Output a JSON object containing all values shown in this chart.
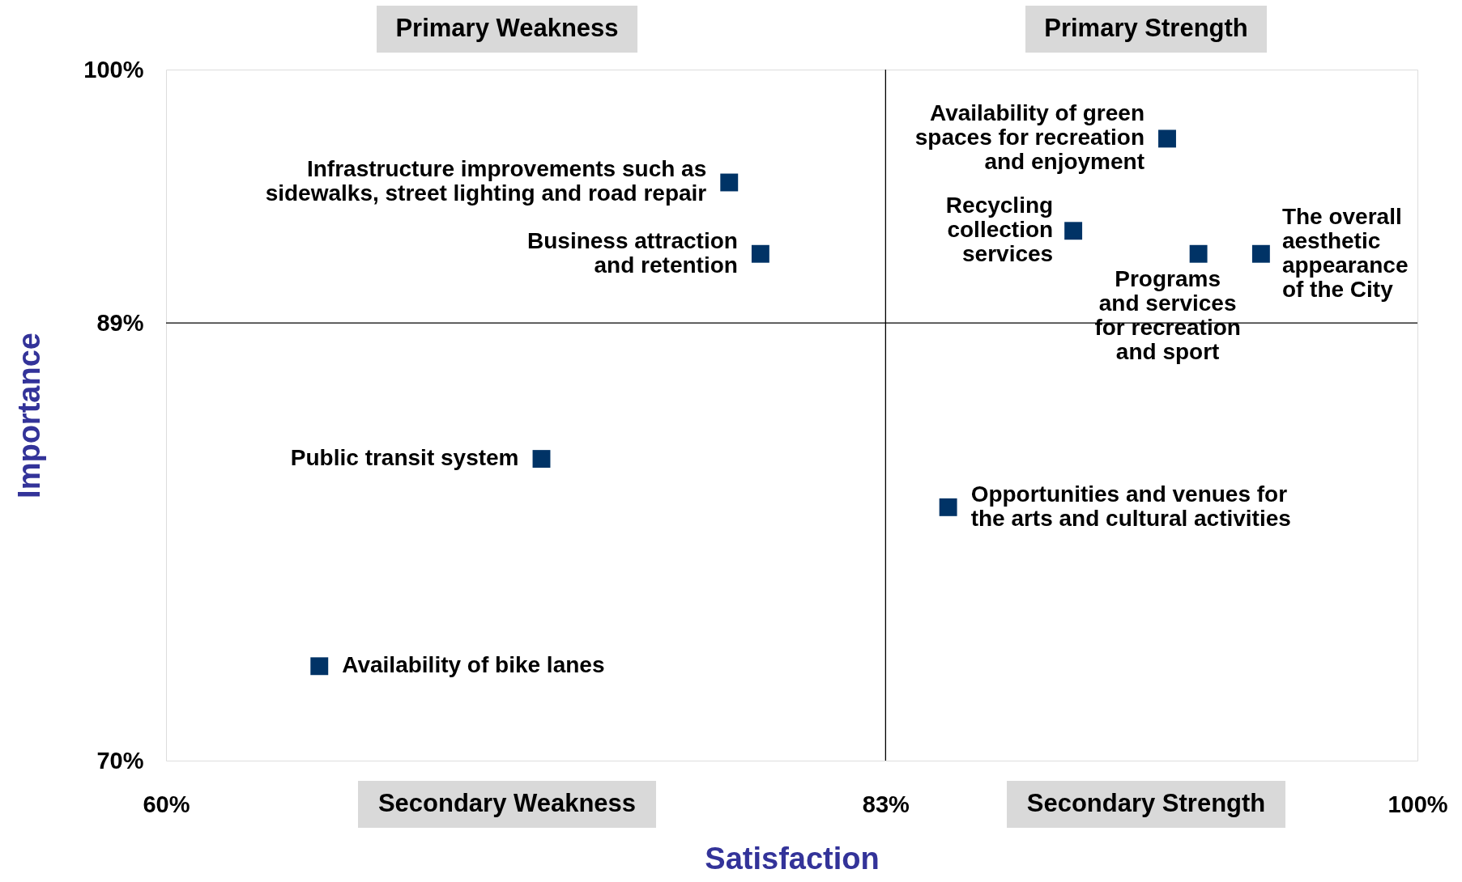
{
  "chart_data": {
    "type": "scatter",
    "xlabel": "Satisfaction",
    "ylabel": "Importance",
    "x": [
      78.0,
      79.0,
      72.0,
      64.9,
      92.0,
      89.0,
      93.0,
      95.0,
      85.0
    ],
    "series": [
      {
        "color": "#003366",
        "values": [
          95.1,
          92.0,
          83.1,
          74.1,
          97.0,
          93.0,
          92.0,
          92.0,
          81.0
        ]
      }
    ],
    "marker": "square",
    "grid": false,
    "xlim": [
      60,
      100
    ],
    "ylim": [
      70,
      100
    ],
    "xticks": [
      {
        "value": 60,
        "label": "60%"
      },
      {
        "value": 83,
        "label": "83%"
      },
      {
        "value": 100,
        "label": "100%"
      }
    ],
    "yticks": [
      {
        "value": 70,
        "label": "70%"
      },
      {
        "value": 89,
        "label": "89%"
      },
      {
        "value": 100,
        "label": "100%"
      }
    ],
    "ref_lines": [
      {
        "axis": "x",
        "value": 83,
        "color": "#000000"
      },
      {
        "axis": "y",
        "value": 89,
        "color": "#000000"
      }
    ],
    "annotations": [
      {
        "text": "Infrastructure improvements such as\nsidewalks, street lighting and road repair",
        "x": 78.0,
        "y": 95.1
      },
      {
        "text": "Business attraction\nand retention",
        "x": 79.0,
        "y": 92.0
      },
      {
        "text": "Public transit system",
        "x": 72.0,
        "y": 83.1
      },
      {
        "text": "Availability of bike lanes",
        "x": 64.9,
        "y": 74.1
      },
      {
        "text": "Availability of green\nspaces for recreation\nand enjoyment",
        "x": 92.0,
        "y": 97.0
      },
      {
        "text": "Recycling\ncollection\nservices",
        "x": 89.0,
        "y": 93.0
      },
      {
        "text": "Programs\nand services\nfor recreation\nand sport",
        "x": 93.0,
        "y": 92.0
      },
      {
        "text": "The overall\naesthetic\nappearance\nof the City",
        "x": 95.0,
        "y": 92.0
      },
      {
        "text": "Opportunities and venues for\nthe arts and cultural activities",
        "x": 85.0,
        "y": 81.0
      },
      "Primary Weakness",
      "Primary Strength",
      "Secondary Weakness",
      "Secondary Strength"
    ]
  }
}
